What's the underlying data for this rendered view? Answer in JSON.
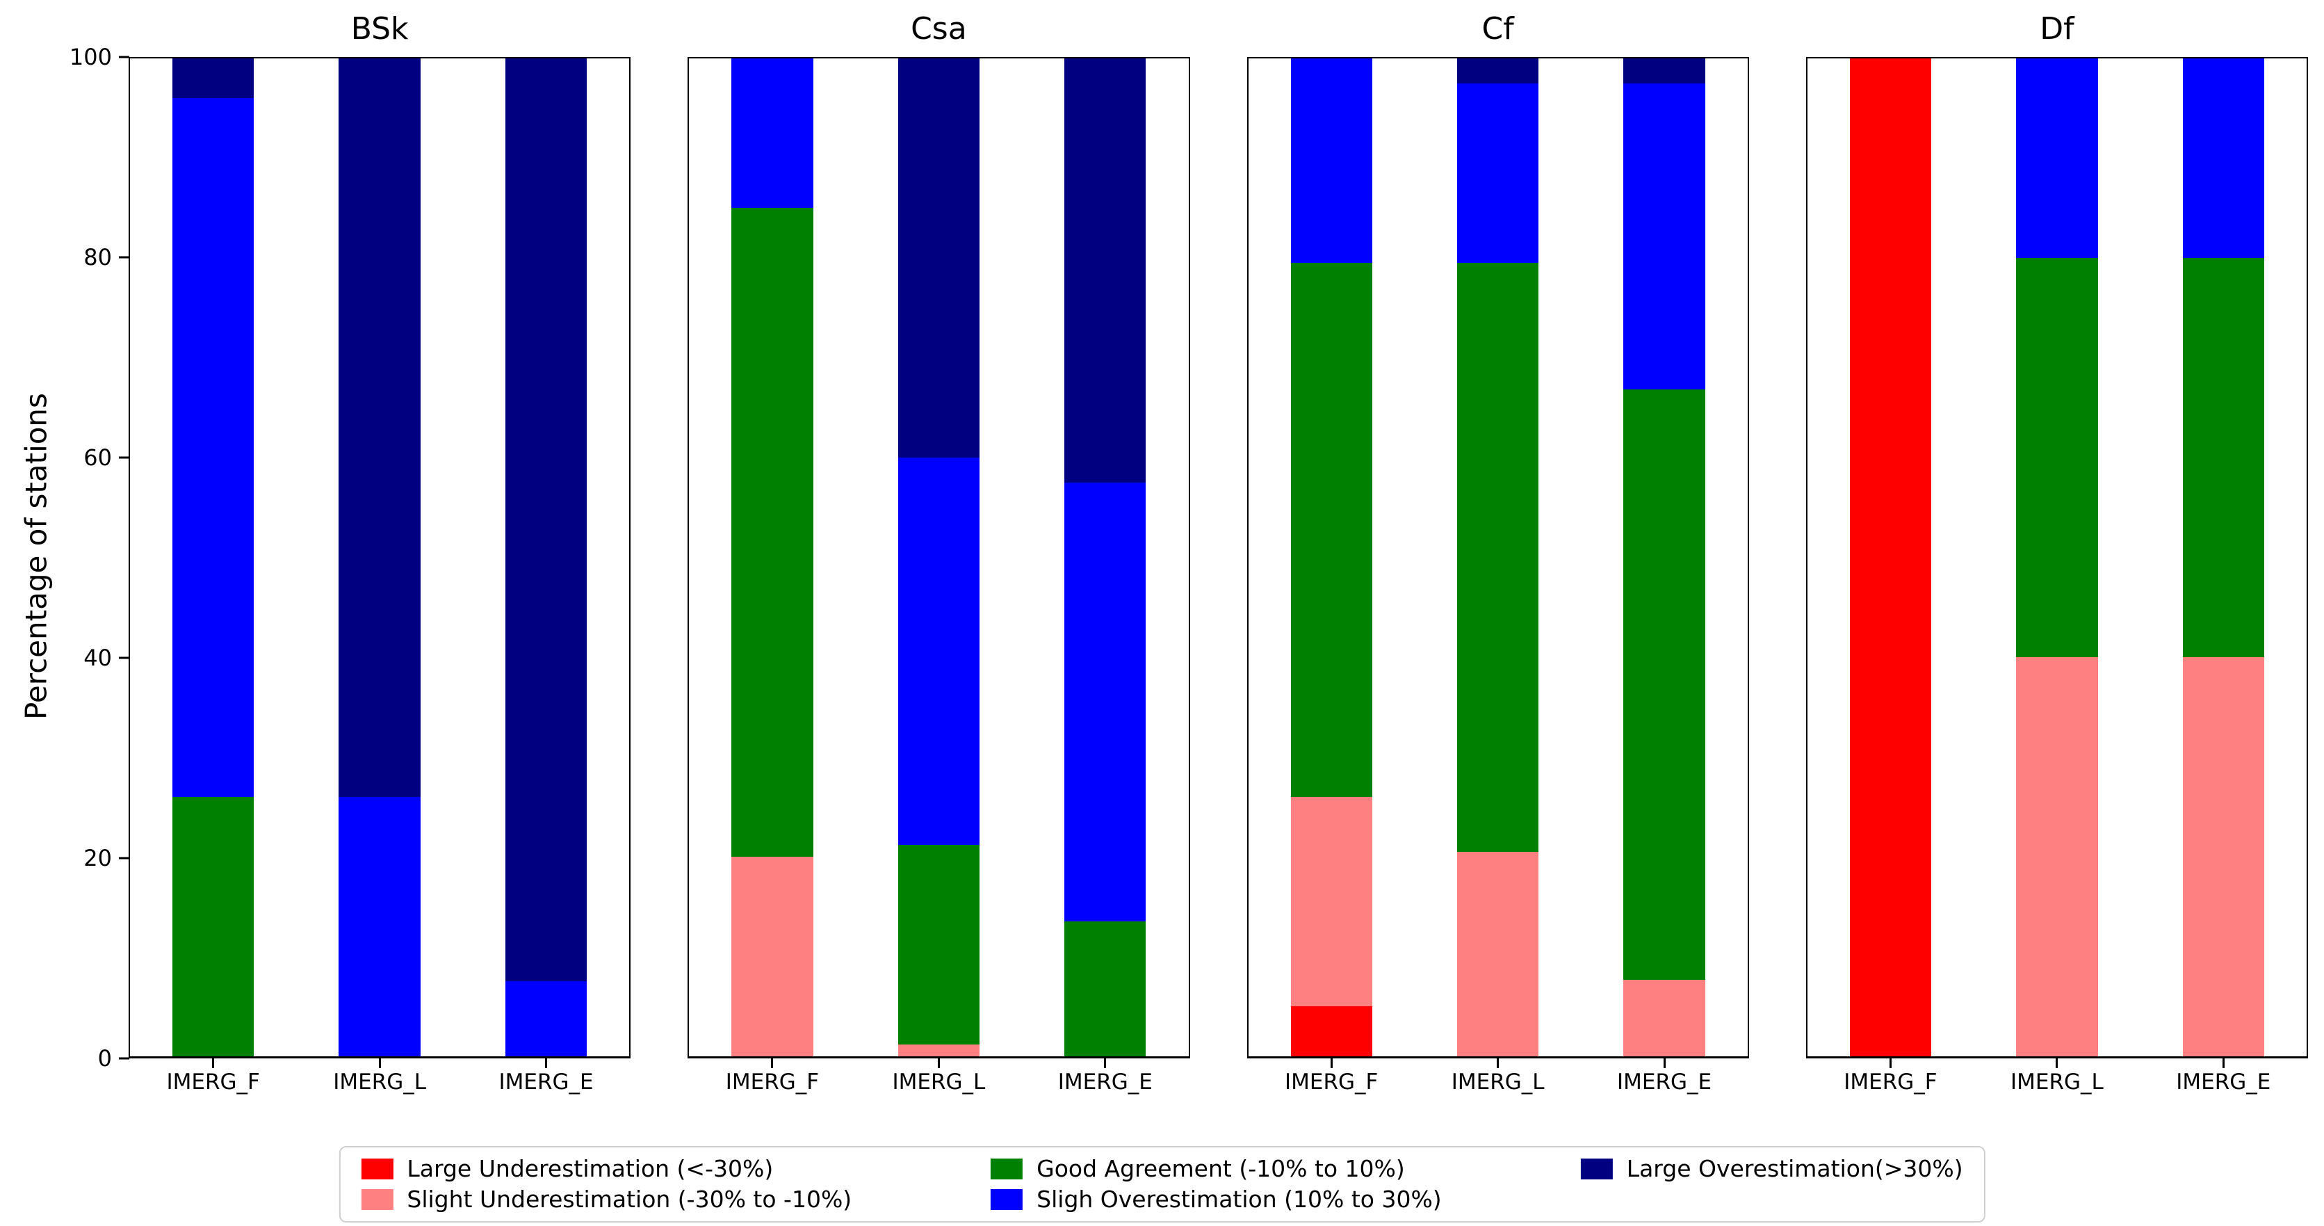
{
  "axes": {
    "ylabel": "Percentage of stations",
    "ylim": [
      0,
      100
    ],
    "yticks": [
      0,
      20,
      40,
      60,
      80,
      100
    ],
    "categories": [
      "IMERG_F",
      "IMERG_L",
      "IMERG_E"
    ]
  },
  "legend": {
    "position": "bottom-center",
    "rows": 2,
    "entries": [
      {
        "name": "large-underestimation",
        "label": "Large Underestimation (<-30%)",
        "color": "#FF0000"
      },
      {
        "name": "slight-underestimation",
        "label": "Slight Underestimation (-30% to -10%)",
        "color": "#FF8080"
      },
      {
        "name": "good-agreement",
        "label": "Good Agreement (-10% to 10%)",
        "color": "#008000"
      },
      {
        "name": "slight-overestimation",
        "label": "Sligh Overestimation (10% to 30%)",
        "color": "#0000FF"
      },
      {
        "name": "large-overestimation",
        "label": "Large Overestimation(>30%)",
        "color": "#000080"
      }
    ]
  },
  "chart_data": [
    {
      "type": "bar",
      "stacked": true,
      "title": "BSk",
      "categories": [
        "IMERG_F",
        "IMERG_L",
        "IMERG_E"
      ],
      "ylim": [
        0,
        100
      ],
      "grid": false,
      "series": [
        {
          "name": "Large Underestimation (<-30%)",
          "color": "#FF0000",
          "values": [
            0,
            0,
            0
          ]
        },
        {
          "name": "Slight Underestimation (-30% to -10%)",
          "color": "#FF8080",
          "values": [
            0,
            0,
            0
          ]
        },
        {
          "name": "Good Agreement (-10% to 10%)",
          "color": "#008000",
          "values": [
            26,
            0,
            0
          ]
        },
        {
          "name": "Sligh Overestimation (10% to 30%)",
          "color": "#0000FF",
          "values": [
            70,
            26,
            7.5
          ]
        },
        {
          "name": "Large Overestimation(>30%)",
          "color": "#000080",
          "values": [
            4,
            74,
            92.5
          ]
        }
      ]
    },
    {
      "type": "bar",
      "stacked": true,
      "title": "Csa",
      "categories": [
        "IMERG_F",
        "IMERG_L",
        "IMERG_E"
      ],
      "ylim": [
        0,
        100
      ],
      "grid": false,
      "series": [
        {
          "name": "Large Underestimation (<-30%)",
          "color": "#FF0000",
          "values": [
            0,
            0,
            0
          ]
        },
        {
          "name": "Slight Underestimation (-30% to -10%)",
          "color": "#FF8080",
          "values": [
            20,
            1.2,
            0
          ]
        },
        {
          "name": "Good Agreement (-10% to 10%)",
          "color": "#008000",
          "values": [
            65,
            20,
            13.5
          ]
        },
        {
          "name": "Sligh Overestimation (10% to 30%)",
          "color": "#0000FF",
          "values": [
            15,
            38.8,
            44
          ]
        },
        {
          "name": "Large Overestimation(>30%)",
          "color": "#000080",
          "values": [
            0,
            40,
            42.5
          ]
        }
      ]
    },
    {
      "type": "bar",
      "stacked": true,
      "title": "Cf",
      "categories": [
        "IMERG_F",
        "IMERG_L",
        "IMERG_E"
      ],
      "ylim": [
        0,
        100
      ],
      "grid": false,
      "series": [
        {
          "name": "Large Underestimation (<-30%)",
          "color": "#FF0000",
          "values": [
            5,
            0,
            0
          ]
        },
        {
          "name": "Slight Underestimation (-30% to -10%)",
          "color": "#FF8080",
          "values": [
            21,
            20.5,
            7.7
          ]
        },
        {
          "name": "Good Agreement (-10% to 10%)",
          "color": "#008000",
          "values": [
            53.5,
            59,
            59.1
          ]
        },
        {
          "name": "Sligh Overestimation (10% to 30%)",
          "color": "#0000FF",
          "values": [
            20.5,
            18,
            30.7
          ]
        },
        {
          "name": "Large Overestimation(>30%)",
          "color": "#000080",
          "values": [
            0,
            2.5,
            2.5
          ]
        }
      ]
    },
    {
      "type": "bar",
      "stacked": true,
      "title": "Df",
      "categories": [
        "IMERG_F",
        "IMERG_L",
        "IMERG_E"
      ],
      "ylim": [
        0,
        100
      ],
      "grid": false,
      "series": [
        {
          "name": "Large Underestimation (<-30%)",
          "color": "#FF0000",
          "values": [
            100,
            0,
            0
          ]
        },
        {
          "name": "Slight Underestimation (-30% to -10%)",
          "color": "#FF8080",
          "values": [
            0,
            40,
            40
          ]
        },
        {
          "name": "Good Agreement (-10% to 10%)",
          "color": "#008000",
          "values": [
            0,
            40,
            40
          ]
        },
        {
          "name": "Sligh Overestimation (10% to 30%)",
          "color": "#0000FF",
          "values": [
            0,
            20,
            20
          ]
        },
        {
          "name": "Large Overestimation(>30%)",
          "color": "#000080",
          "values": [
            0,
            0,
            0
          ]
        }
      ]
    }
  ]
}
